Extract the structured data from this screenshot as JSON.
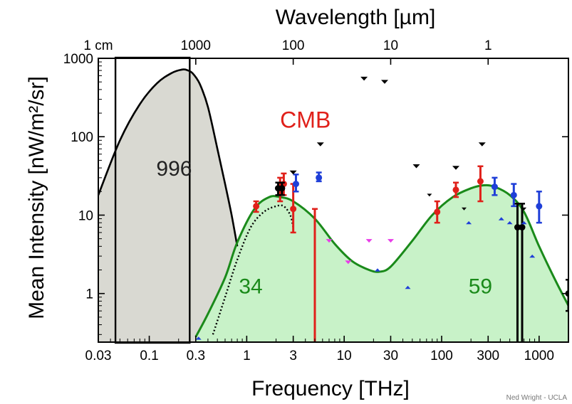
{
  "chart_data": {
    "type": "line",
    "title": "",
    "xlabel": "Frequency [THz]",
    "ylabel": "Mean Intensity [nW/m²/sr]",
    "x2label": "Wavelength [µm]",
    "x_scale": "log",
    "y_scale": "log",
    "xlim": [
      0.03,
      2000
    ],
    "ylim": [
      0.24,
      1000
    ],
    "x_ticks": [
      0.03,
      0.1,
      0.3,
      1,
      3,
      10,
      30,
      100,
      300,
      1000
    ],
    "x_tick_labels": [
      "0.03",
      "0.1",
      "0.3",
      "1",
      "3",
      "10",
      "30",
      "100",
      "300",
      "1000"
    ],
    "y_ticks": [
      1,
      10,
      100,
      1000
    ],
    "y_tick_labels": [
      "1",
      "10",
      "100",
      "1000"
    ],
    "x2_ticks": [
      0.03,
      0.3,
      3,
      30,
      300
    ],
    "x2_tick_labels": [
      "1 cm",
      "1000",
      "100",
      "10",
      "1"
    ],
    "grid": false,
    "colors": {
      "cmb_fill": "#d9d9d2",
      "cib_fill": "#c8f2c8",
      "model_line": "#1a8a1a",
      "red_data": "#e0201a",
      "blue_data": "#1f3fd8",
      "magenta_limits": "#e83ce8",
      "black": "#000000"
    },
    "annotations": [
      {
        "text": "CMB",
        "x": 4.0,
        "y": 130,
        "color": "#e0201a"
      },
      {
        "text": "996",
        "x": 0.18,
        "y": 32,
        "color": "#222222"
      },
      {
        "text": "34",
        "x": 1.1,
        "y": 1.0,
        "color": "#1a8a1a"
      },
      {
        "text": "59",
        "x": 250,
        "y": 1.0,
        "color": "#1a8a1a"
      }
    ],
    "credit": "Ned Wright - UCLA",
    "highlight_box_x": [
      0.045,
      0.26
    ],
    "series": [
      {
        "style": "cmb",
        "x": [
          0.03,
          0.05,
          0.08,
          0.12,
          0.17,
          0.22,
          0.25,
          0.28,
          0.33,
          0.4,
          0.5,
          0.6,
          0.7,
          0.8
        ],
        "y": [
          18,
          90,
          260,
          480,
          650,
          720,
          700,
          640,
          470,
          240,
          70,
          25,
          10,
          4
        ]
      },
      {
        "style": "cib",
        "x": [
          0.3,
          0.4,
          0.6,
          0.8,
          1.2,
          1.7,
          2.2,
          3,
          5,
          8,
          12,
          18,
          23,
          30,
          50,
          80,
          130,
          200,
          270,
          350,
          500,
          700,
          1000,
          1500,
          2000
        ],
        "y": [
          0.28,
          0.55,
          1.6,
          4.5,
          12,
          17,
          17,
          15,
          9,
          4.3,
          2.6,
          2.0,
          1.9,
          2.2,
          4.7,
          10,
          17,
          22,
          24,
          23,
          18,
          11,
          4,
          1.4,
          0.7
        ]
      },
      {
        "style": "dotted",
        "x": [
          0.45,
          0.6,
          0.8,
          1.1,
          1.5,
          2.0,
          2.4,
          2.8,
          3.0
        ],
        "y": [
          0.3,
          0.9,
          2.7,
          7,
          11,
          13,
          13,
          10,
          7
        ]
      },
      {
        "name": "red",
        "style": "points",
        "x": [
          1.25,
          2.2,
          2.4,
          3.0,
          5.0,
          90,
          140,
          250
        ],
        "y": [
          13,
          22,
          25,
          12,
          0.23,
          11,
          21,
          27
        ],
        "y_low": [
          11,
          15,
          18,
          6,
          0.23,
          8,
          17,
          15
        ],
        "y_high": [
          15,
          30,
          34,
          25,
          12,
          15,
          26,
          42
        ]
      },
      {
        "name": "blue",
        "style": "points",
        "x": [
          3.2,
          5.5,
          350,
          550,
          1000
        ],
        "y": [
          25,
          30,
          23,
          18,
          13
        ],
        "y_low": [
          20,
          27,
          18,
          13,
          8
        ],
        "y_high": [
          33,
          35,
          30,
          25,
          20
        ]
      },
      {
        "name": "black-points",
        "style": "points",
        "x": [
          2.1,
          2.3,
          600,
          670,
          2000
        ],
        "y": [
          22,
          22,
          7,
          7,
          1.0
        ],
        "y_low": [
          18,
          18,
          0.23,
          0.23,
          0.6
        ],
        "y_high": [
          26,
          26,
          14,
          14,
          1.5
        ]
      },
      {
        "name": "black-upper-limits",
        "style": "limits-down",
        "x": [
          3.0,
          5.7,
          16,
          26,
          55,
          140,
          260
        ],
        "y": [
          35,
          80,
          550,
          500,
          42,
          40,
          80
        ]
      },
      {
        "name": "small-black-marks",
        "style": "limits-down",
        "x": [
          75,
          170,
          700
        ],
        "y": [
          18,
          12,
          12
        ]
      },
      {
        "name": "magenta-limits",
        "style": "limits-down",
        "x": [
          7,
          11,
          18,
          30
        ],
        "y": [
          4.7,
          2.5,
          4.7,
          4.7
        ]
      },
      {
        "name": "blue-lower-limits",
        "style": "limits-up",
        "x": [
          0.32,
          22,
          45,
          190,
          410,
          500,
          700,
          850
        ],
        "y": [
          0.27,
          2.0,
          1.2,
          8,
          9,
          8,
          8,
          3
        ]
      }
    ]
  }
}
